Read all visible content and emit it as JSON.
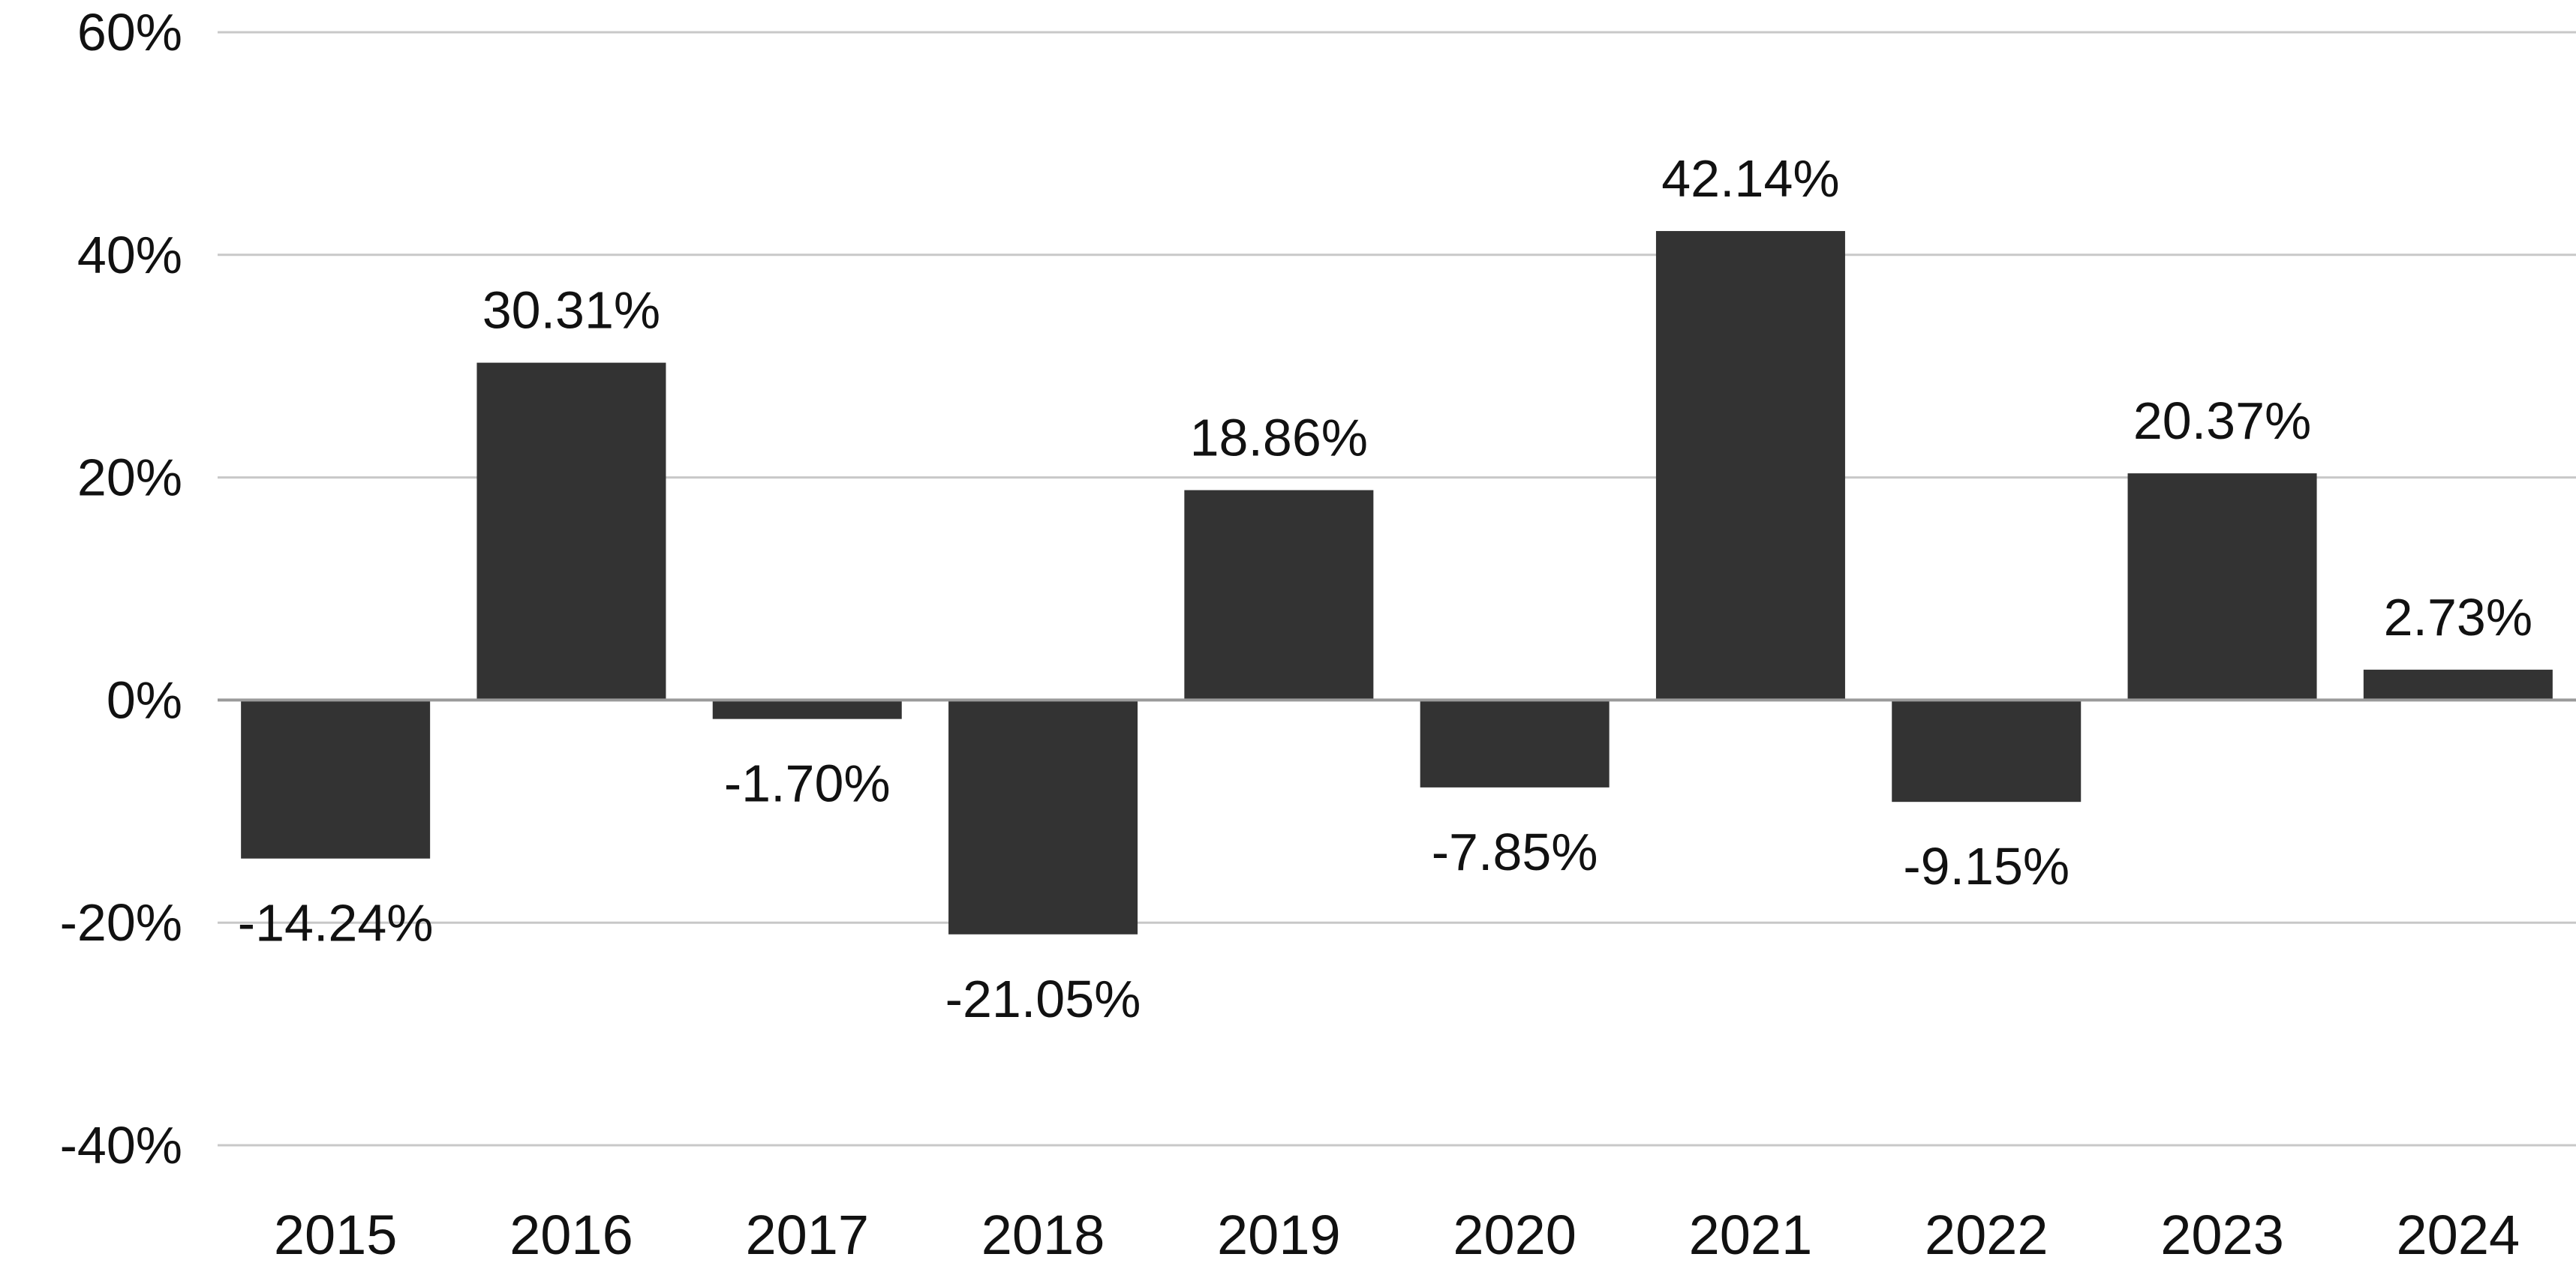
{
  "chart_data": {
    "type": "bar",
    "categories": [
      "2015",
      "2016",
      "2017",
      "2018",
      "2019",
      "2020",
      "2021",
      "2022",
      "2023",
      "2024"
    ],
    "values": [
      -14.24,
      30.31,
      -1.7,
      -21.05,
      18.86,
      -7.85,
      42.14,
      -9.15,
      20.37,
      2.73
    ],
    "data_labels": [
      "-14.24%",
      "30.31%",
      "-1.70%",
      "-21.05%",
      "18.86%",
      "-7.85%",
      "42.14%",
      "-9.15%",
      "20.37%",
      "2.73%"
    ],
    "y_ticks": [
      60,
      40,
      20,
      0,
      -20,
      -40
    ],
    "y_tick_labels": [
      "60%",
      "40%",
      "20%",
      "0%",
      "-20%",
      "-40%"
    ],
    "ylim": [
      -40,
      60
    ],
    "title": "",
    "xlabel": "",
    "ylabel": "",
    "grid": true,
    "legend": "none",
    "colors": {
      "bar": "#333333",
      "grid": "#c8c8c8",
      "zero_line": "#9a9a9a",
      "text": "#111111"
    }
  }
}
